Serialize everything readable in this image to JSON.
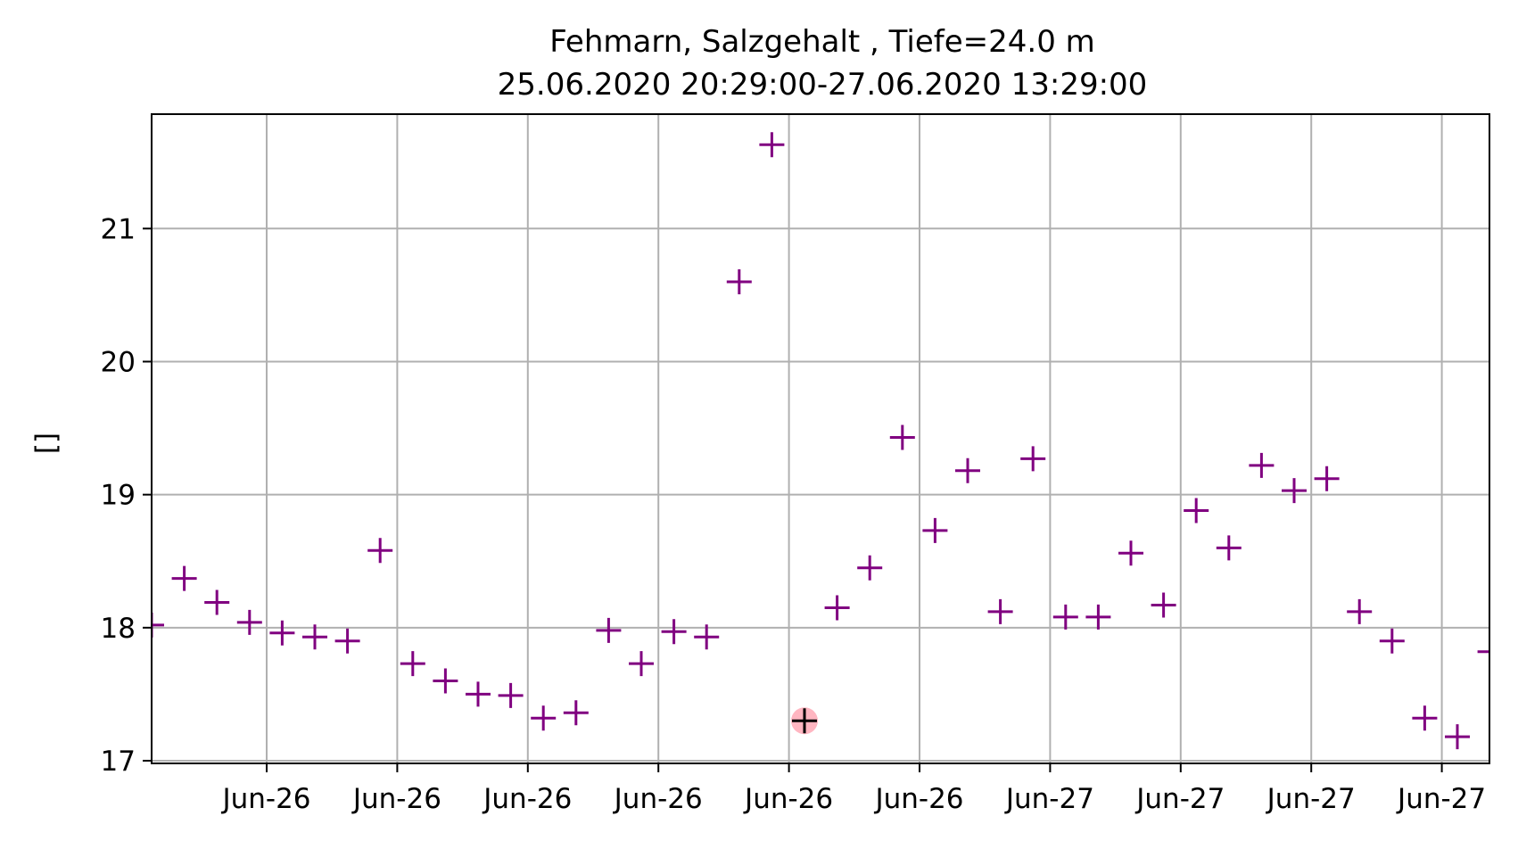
{
  "chart_data": {
    "type": "scatter",
    "title": "Fehmarn, Salzgehalt , Tiefe=24.0 m",
    "subtitle": "25.06.2020 20:29:00-27.06.2020 13:29:00",
    "xlabel": "",
    "ylabel": "[]",
    "x_tick_labels": [
      "Jun-26",
      "Jun-26",
      "Jun-26",
      "Jun-26",
      "Jun-26",
      "Jun-26",
      "Jun-27",
      "Jun-27",
      "Jun-27",
      "Jun-27"
    ],
    "y_ticks": [
      17,
      18,
      19,
      20,
      21
    ],
    "ylim": [
      16.98,
      21.86
    ],
    "grid": true,
    "marker": "+",
    "marker_color": "#800080",
    "highlight_color": "#ffb6c1",
    "highlight_index": 20,
    "series": [
      {
        "values": [
          18.02,
          18.37,
          18.19,
          18.04,
          17.96,
          17.93,
          17.9,
          18.58,
          17.73,
          17.6,
          17.5,
          17.49,
          17.32,
          17.36,
          17.98,
          17.73,
          17.97,
          17.93,
          20.6,
          21.63,
          17.3,
          18.15,
          18.45,
          19.43,
          18.73,
          19.18,
          18.12,
          19.27,
          18.08,
          18.08,
          18.56,
          18.17,
          18.88,
          18.6,
          19.22,
          19.03,
          19.12,
          18.12,
          17.9,
          17.32,
          17.18,
          17.82
        ]
      }
    ]
  }
}
